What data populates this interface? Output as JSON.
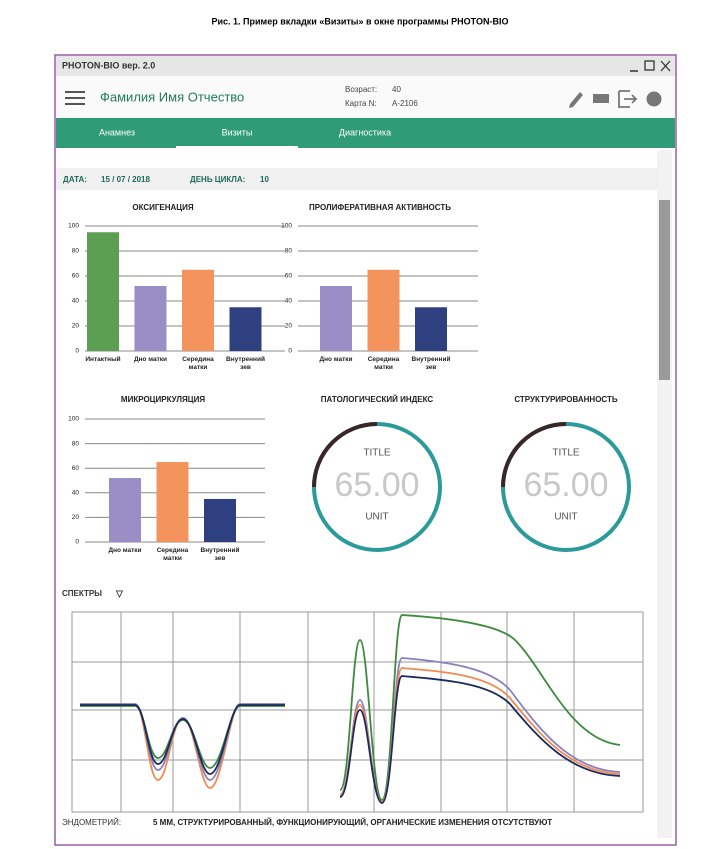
{
  "caption": "Рис. 1. Пример вкладки «Визиты» в окне программы PHOTON-BIO",
  "window": {
    "title": "PHOTON-BIO вер. 2.0"
  },
  "header": {
    "name": "Фамилия Имя Отчество",
    "age_label": "Возраст:",
    "age": "40",
    "card_label": "Карта N:",
    "card": "A-2106"
  },
  "tabs": {
    "items": [
      "Анамнез",
      "Визиты",
      "Диагностика"
    ],
    "active": 1
  },
  "info": {
    "date_label": "ДАТА:",
    "date": "15 / 07 / 2018",
    "cycle_label": "ДЕНЬ ЦИКЛА:",
    "cycle": "10"
  },
  "charts": [
    {
      "type": "bar",
      "title": "ОКСИГЕНАЦИЯ",
      "categories": [
        "Интактный",
        "Дно матки",
        "Середина матки",
        "Внутренний зев"
      ],
      "values": [
        95,
        52,
        65,
        35
      ],
      "colors": [
        "#5c9e52",
        "#9b8ec6",
        "#f4945c",
        "#2f4080"
      ],
      "ylim": [
        0,
        100
      ],
      "yticks": [
        0,
        20,
        40,
        60,
        80,
        100
      ],
      "grid": true
    },
    {
      "type": "bar",
      "title": "ПРОЛИФЕРАТИВНАЯ АКТИВНОСТЬ",
      "categories": [
        "Дно матки",
        "Середина матки",
        "Внутренний зев"
      ],
      "values": [
        52,
        65,
        35
      ],
      "colors": [
        "#9b8ec6",
        "#f4945c",
        "#2f4080"
      ],
      "ylim": [
        0,
        100
      ],
      "yticks": [
        0,
        20,
        40,
        60,
        80,
        100
      ],
      "grid": true
    },
    {
      "type": "bar",
      "title": "МИКРОЦИРКУЛЯЦИЯ",
      "categories": [
        "Дно матки",
        "Середина матки",
        "Внутренний зев"
      ],
      "values": [
        52,
        65,
        35
      ],
      "colors": [
        "#9b8ec6",
        "#f4945c",
        "#2f4080"
      ],
      "ylim": [
        0,
        100
      ],
      "yticks": [
        0,
        20,
        40,
        60,
        80,
        100
      ],
      "grid": true
    }
  ],
  "gauges": [
    {
      "heading": "ПАТОЛОГИЧЕСКИЙ ИНДЕКС",
      "title": "TITLE",
      "value": "65.00",
      "unit": "UNIT"
    },
    {
      "heading": "СТРУКТУРИРОВАННОСТЬ",
      "title": "TITLE",
      "value": "65.00",
      "unit": "UNIT"
    }
  ],
  "spectra": {
    "label": "СПЕКТРЫ",
    "toggle": "▽"
  },
  "footer": {
    "label": "ЭНДОМЕТРИЙ:",
    "text": "5 ММ, СТРУКТУРИРОВАННЫЙ, ФУНКЦИОНИРУЮЩИЙ, ОРГАНИЧЕСКИЕ ИЗМЕНЕНИЯ ОТСУТСТВУЮТ"
  }
}
